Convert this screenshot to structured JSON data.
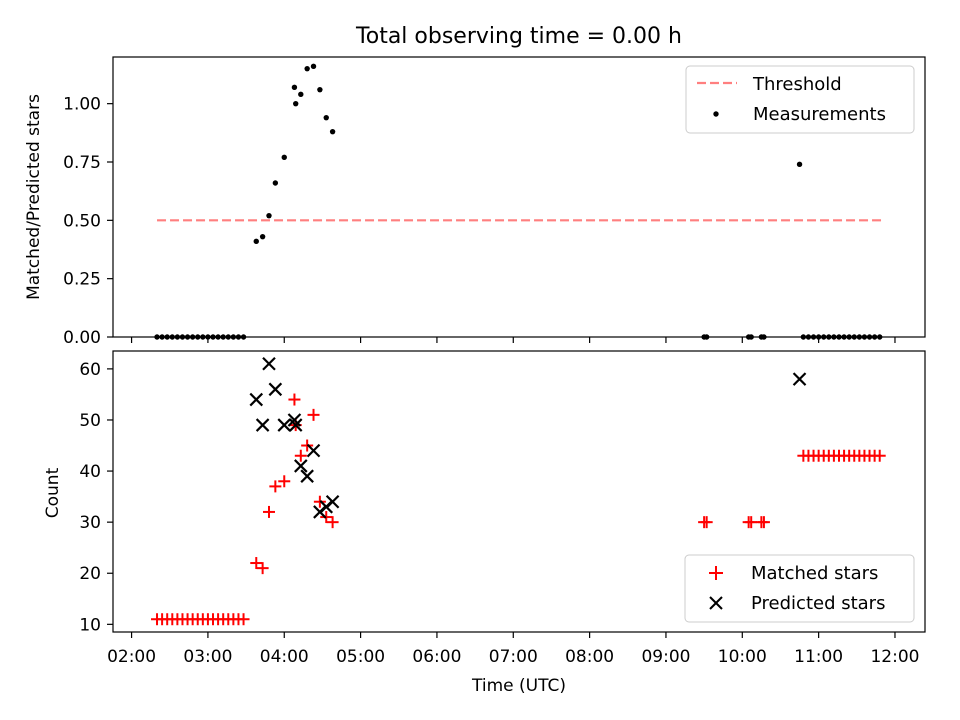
{
  "title": "Total observing time = 0.00 h",
  "chart_data": [
    {
      "type": "scatter",
      "ylabel": "Matched/Predicted stars",
      "xlabel": "",
      "x_unit": "time UTC (HH:MM)",
      "xlim": [
        "02:00",
        "12:00"
      ],
      "ylim": [
        0,
        1.2
      ],
      "yticks": [
        "0.00",
        "0.25",
        "0.50",
        "0.75",
        "1.00"
      ],
      "ytick_values": [
        0,
        0.25,
        0.5,
        0.75,
        1.0
      ],
      "legend_position": "top-right",
      "threshold": {
        "name": "Threshold",
        "y": 0.5,
        "x_start": "02:20",
        "x_end": "11:50",
        "color": "#ff7f7f"
      },
      "series": [
        {
          "name": "Measurements",
          "color": "#000000",
          "points": [
            [
              "02:20",
              0
            ],
            [
              "02:24",
              0
            ],
            [
              "02:28",
              0
            ],
            [
              "02:32",
              0
            ],
            [
              "02:36",
              0
            ],
            [
              "02:40",
              0
            ],
            [
              "02:44",
              0
            ],
            [
              "02:48",
              0
            ],
            [
              "02:52",
              0
            ],
            [
              "02:56",
              0
            ],
            [
              "03:00",
              0
            ],
            [
              "03:04",
              0
            ],
            [
              "03:08",
              0
            ],
            [
              "03:12",
              0
            ],
            [
              "03:16",
              0
            ],
            [
              "03:20",
              0
            ],
            [
              "03:24",
              0
            ],
            [
              "03:28",
              0
            ],
            [
              "03:38",
              0.41
            ],
            [
              "03:43",
              0.43
            ],
            [
              "03:48",
              0.52
            ],
            [
              "03:53",
              0.66
            ],
            [
              "04:00",
              0.77
            ],
            [
              "04:08",
              1.07
            ],
            [
              "04:09",
              1.0
            ],
            [
              "04:13",
              1.04
            ],
            [
              "04:18",
              1.15
            ],
            [
              "04:23",
              1.16
            ],
            [
              "04:28",
              1.06
            ],
            [
              "04:33",
              0.94
            ],
            [
              "04:38",
              0.88
            ],
            [
              "09:30",
              0
            ],
            [
              "09:32",
              0
            ],
            [
              "10:05",
              0
            ],
            [
              "10:07",
              0
            ],
            [
              "10:15",
              0
            ],
            [
              "10:17",
              0
            ],
            [
              "10:45",
              0.74
            ],
            [
              "10:48",
              0
            ],
            [
              "10:52",
              0
            ],
            [
              "10:56",
              0
            ],
            [
              "11:00",
              0
            ],
            [
              "11:04",
              0
            ],
            [
              "11:08",
              0
            ],
            [
              "11:12",
              0
            ],
            [
              "11:16",
              0
            ],
            [
              "11:20",
              0
            ],
            [
              "11:24",
              0
            ],
            [
              "11:28",
              0
            ],
            [
              "11:32",
              0
            ],
            [
              "11:36",
              0
            ],
            [
              "11:40",
              0
            ],
            [
              "11:44",
              0
            ],
            [
              "11:48",
              0
            ]
          ]
        }
      ]
    },
    {
      "type": "scatter",
      "ylabel": "Count",
      "xlabel": "Time (UTC)",
      "xlim": [
        "02:00",
        "12:00"
      ],
      "xticks": [
        "02:00",
        "03:00",
        "04:00",
        "05:00",
        "06:00",
        "07:00",
        "08:00",
        "09:00",
        "10:00",
        "11:00",
        "12:00"
      ],
      "ylim": [
        8.5,
        63.5
      ],
      "yticks": [
        "10",
        "20",
        "30",
        "40",
        "50",
        "60"
      ],
      "ytick_values": [
        10,
        20,
        30,
        40,
        50,
        60
      ],
      "legend_position": "bottom-right",
      "series": [
        {
          "name": "Matched stars",
          "marker": "+",
          "color": "#ff0000",
          "points": [
            [
              "02:20",
              11
            ],
            [
              "02:24",
              11
            ],
            [
              "02:28",
              11
            ],
            [
              "02:32",
              11
            ],
            [
              "02:36",
              11
            ],
            [
              "02:40",
              11
            ],
            [
              "02:44",
              11
            ],
            [
              "02:48",
              11
            ],
            [
              "02:52",
              11
            ],
            [
              "02:56",
              11
            ],
            [
              "03:00",
              11
            ],
            [
              "03:04",
              11
            ],
            [
              "03:08",
              11
            ],
            [
              "03:12",
              11
            ],
            [
              "03:16",
              11
            ],
            [
              "03:20",
              11
            ],
            [
              "03:24",
              11
            ],
            [
              "03:28",
              11
            ],
            [
              "03:38",
              22
            ],
            [
              "03:43",
              21
            ],
            [
              "03:48",
              32
            ],
            [
              "03:53",
              37
            ],
            [
              "04:00",
              38
            ],
            [
              "04:08",
              54
            ],
            [
              "04:09",
              49
            ],
            [
              "04:13",
              43
            ],
            [
              "04:18",
              45
            ],
            [
              "04:23",
              51
            ],
            [
              "04:28",
              34
            ],
            [
              "04:33",
              31
            ],
            [
              "04:38",
              30
            ],
            [
              "09:30",
              30
            ],
            [
              "09:32",
              30
            ],
            [
              "10:05",
              30
            ],
            [
              "10:07",
              30
            ],
            [
              "10:15",
              30
            ],
            [
              "10:17",
              30
            ],
            [
              "10:48",
              43
            ],
            [
              "10:52",
              43
            ],
            [
              "10:56",
              43
            ],
            [
              "11:00",
              43
            ],
            [
              "11:04",
              43
            ],
            [
              "11:08",
              43
            ],
            [
              "11:12",
              43
            ],
            [
              "11:16",
              43
            ],
            [
              "11:20",
              43
            ],
            [
              "11:24",
              43
            ],
            [
              "11:28",
              43
            ],
            [
              "11:32",
              43
            ],
            [
              "11:36",
              43
            ],
            [
              "11:40",
              43
            ],
            [
              "11:44",
              43
            ],
            [
              "11:48",
              43
            ]
          ]
        },
        {
          "name": "Predicted stars",
          "marker": "x",
          "color": "#000000",
          "points": [
            [
              "03:38",
              54
            ],
            [
              "03:43",
              49
            ],
            [
              "03:48",
              61
            ],
            [
              "03:53",
              56
            ],
            [
              "04:00",
              49
            ],
            [
              "04:08",
              50
            ],
            [
              "04:09",
              49
            ],
            [
              "04:13",
              41
            ],
            [
              "04:18",
              39
            ],
            [
              "04:23",
              44
            ],
            [
              "04:28",
              32
            ],
            [
              "04:33",
              33
            ],
            [
              "04:38",
              34
            ],
            [
              "10:45",
              58
            ]
          ]
        }
      ]
    }
  ]
}
